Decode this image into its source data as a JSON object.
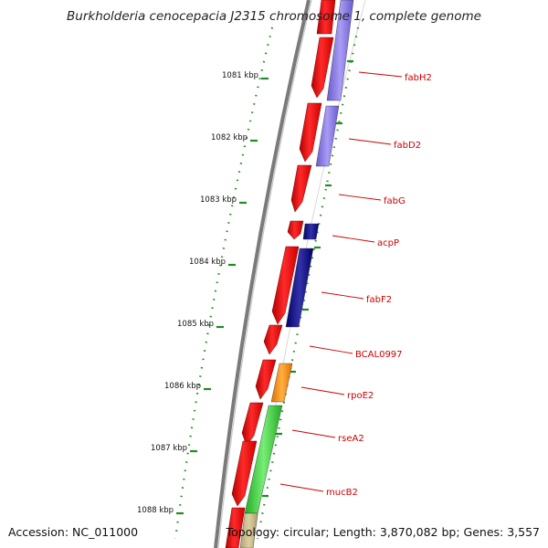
{
  "header": {
    "title": "Burkholderia cenocepacia J2315 chromosome 1, complete genome"
  },
  "footer": {
    "accession": "Accession: NC_011000",
    "summary": "Topology: circular; Length: 3,870,082 bp; Genes: 3,557"
  },
  "map": {
    "position_ticks": [
      "1081 kbp",
      "1082 kbp",
      "1083 kbp",
      "1084 kbp",
      "1085 kbp",
      "1086 kbp",
      "1087 kbp",
      "1088 kbp"
    ],
    "gene_labels": [
      "fabH2",
      "fabD2",
      "fabG",
      "acpP",
      "fabF2",
      "BCAL0997",
      "rpoE2",
      "rseA2",
      "mucB2"
    ],
    "colors": {
      "cds": "#ee0000",
      "cog_purple": "#7b68ee",
      "cog_navy": "#0a0a8a",
      "cog_orange": "#ff8c00",
      "cog_green": "#33cc33",
      "cog_tan": "#c8b880",
      "backbone": "#7a7a7a",
      "ticks": "#228b22",
      "label_line": "#cc0000"
    }
  }
}
